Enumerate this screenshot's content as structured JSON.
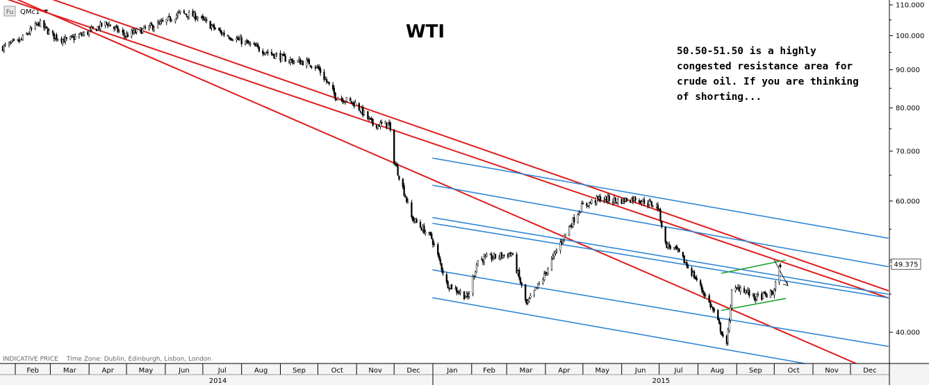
{
  "symbol": {
    "icon": "Fu",
    "name": "QMc1",
    "dropdown_glyph": "▼"
  },
  "footer": {
    "indicative": "INDICATIVE PRICE",
    "timezone": "Time Zone: Dublin, Edinburgh, Lisbon, London"
  },
  "colors": {
    "up": "#ffffff",
    "down": "#000000",
    "red": "#e01b1b",
    "blue": "#2f86d6",
    "green": "#1aa12c"
  },
  "chart_data": {
    "type": "candlestick",
    "title": "WTI",
    "annotation": [
      "50.50-51.50 is a highly",
      "congested resistance area for",
      "crude oil. If you are thinking",
      "of shorting..."
    ],
    "y_scale": "log",
    "ylim": [
      35,
      112
    ],
    "y_ticks": [
      "110.000",
      "100.000",
      "90.000",
      "80.000",
      "70.000",
      "60.000",
      "40.000"
    ],
    "y_tick_values": [
      110,
      100,
      90,
      80,
      70,
      60,
      40
    ],
    "last_price": "49.375",
    "x_range": [
      "2014-01-22",
      "2015-12-31"
    ],
    "months": [
      {
        "label": "Feb",
        "date": "2014-02-01"
      },
      {
        "label": "Mar",
        "date": "2014-03-01"
      },
      {
        "label": "Apr",
        "date": "2014-04-01"
      },
      {
        "label": "May",
        "date": "2014-05-01"
      },
      {
        "label": "Jun",
        "date": "2014-06-01"
      },
      {
        "label": "Jul",
        "date": "2014-07-01"
      },
      {
        "label": "Aug",
        "date": "2014-08-01"
      },
      {
        "label": "Sep",
        "date": "2014-09-01"
      },
      {
        "label": "Oct",
        "date": "2014-10-01"
      },
      {
        "label": "Nov",
        "date": "2014-11-01"
      },
      {
        "label": "Dec",
        "date": "2014-12-01"
      },
      {
        "label": "Jan",
        "date": "2015-01-01"
      },
      {
        "label": "Feb",
        "date": "2015-02-01"
      },
      {
        "label": "Mar",
        "date": "2015-03-01"
      },
      {
        "label": "Apr",
        "date": "2015-04-01"
      },
      {
        "label": "May",
        "date": "2015-05-01"
      },
      {
        "label": "Jun",
        "date": "2015-06-01"
      },
      {
        "label": "Jul",
        "date": "2015-07-01"
      },
      {
        "label": "Aug",
        "date": "2015-08-01"
      },
      {
        "label": "Sep",
        "date": "2015-09-01"
      },
      {
        "label": "Oct",
        "date": "2015-10-01"
      },
      {
        "label": "Nov",
        "date": "2015-11-01"
      },
      {
        "label": "Dec",
        "date": "2015-12-01"
      }
    ],
    "years": [
      {
        "label": "2014",
        "date": "2014-01-01",
        "end": "2015-01-01"
      },
      {
        "label": "2015",
        "date": "2015-01-01",
        "end": "2016-01-01"
      }
    ],
    "price_path": [
      [
        "2014-01-22",
        96.5
      ],
      [
        "2014-02-05",
        98.5
      ],
      [
        "2014-02-20",
        104
      ],
      [
        "2014-03-03",
        100
      ],
      [
        "2014-03-14",
        98.5
      ],
      [
        "2014-03-31",
        101
      ],
      [
        "2014-04-15",
        104
      ],
      [
        "2014-04-30",
        100
      ],
      [
        "2014-05-15",
        102
      ],
      [
        "2014-05-30",
        104
      ],
      [
        "2014-06-13",
        107.3
      ],
      [
        "2014-06-27",
        106
      ],
      [
        "2014-07-15",
        101
      ],
      [
        "2014-07-31",
        98.5
      ],
      [
        "2014-08-15",
        96
      ],
      [
        "2014-08-29",
        94
      ],
      [
        "2014-09-10",
        92.5
      ],
      [
        "2014-09-24",
        92
      ],
      [
        "2014-10-01",
        90.5
      ],
      [
        "2014-10-15",
        83
      ],
      [
        "2014-10-31",
        81
      ],
      [
        "2014-11-14",
        76
      ],
      [
        "2014-11-27",
        76
      ],
      [
        "2014-12-01",
        68
      ],
      [
        "2014-12-15",
        57
      ],
      [
        "2014-12-31",
        53.5
      ],
      [
        "2015-01-12",
        46.5
      ],
      [
        "2015-01-29",
        44.5
      ],
      [
        "2015-02-06",
        50
      ],
      [
        "2015-02-20",
        50.5
      ],
      [
        "2015-03-05",
        51
      ],
      [
        "2015-03-17",
        43.5
      ],
      [
        "2015-03-31",
        47.6
      ],
      [
        "2015-04-15",
        53.5
      ],
      [
        "2015-04-30",
        59
      ],
      [
        "2015-05-15",
        60.5
      ],
      [
        "2015-05-29",
        60
      ],
      [
        "2015-06-12",
        60.5
      ],
      [
        "2015-06-30",
        59
      ],
      [
        "2015-07-06",
        52.5
      ],
      [
        "2015-07-15",
        51.5
      ],
      [
        "2015-07-31",
        47
      ],
      [
        "2015-08-14",
        42.5
      ],
      [
        "2015-08-24",
        38.3
      ],
      [
        "2015-08-28",
        45.2
      ],
      [
        "2015-09-04",
        46
      ],
      [
        "2015-09-15",
        44.5
      ],
      [
        "2015-09-30",
        45.1
      ],
      [
        "2015-10-06",
        49.4
      ]
    ],
    "trendlines": [
      {
        "color": "red",
        "points": [
          [
            "2014-01-25",
            112
          ],
          [
            "2015-12-31",
            44.5
          ]
        ]
      },
      {
        "color": "red",
        "points": [
          [
            "2014-01-22",
            118
          ],
          [
            "2015-12-31",
            45.5
          ]
        ]
      },
      {
        "color": "red",
        "points": [
          [
            "2014-01-22",
            114
          ],
          [
            "2015-12-31",
            34.8
          ]
        ]
      },
      {
        "color": "blue",
        "points": [
          [
            "2015-01-01",
            68.5
          ],
          [
            "2015-12-31",
            53.5
          ]
        ]
      },
      {
        "color": "blue",
        "points": [
          [
            "2015-01-01",
            63
          ],
          [
            "2015-12-31",
            49
          ]
        ]
      },
      {
        "color": "blue",
        "points": [
          [
            "2015-01-01",
            57
          ],
          [
            "2015-12-31",
            45
          ]
        ]
      },
      {
        "color": "blue",
        "points": [
          [
            "2015-01-01",
            56
          ],
          [
            "2015-12-31",
            44.5
          ]
        ]
      },
      {
        "color": "blue",
        "points": [
          [
            "2015-01-01",
            48.5
          ],
          [
            "2015-12-31",
            38.3
          ]
        ]
      },
      {
        "color": "blue",
        "points": [
          [
            "2015-01-01",
            44.5
          ],
          [
            "2015-11-20",
            35.7
          ]
        ]
      },
      {
        "color": "green",
        "points": [
          [
            "2015-08-20",
            48
          ],
          [
            "2015-10-10",
            50
          ]
        ]
      },
      {
        "color": "green",
        "points": [
          [
            "2015-08-20",
            42.8
          ],
          [
            "2015-10-10",
            44.4
          ]
        ]
      }
    ],
    "arrow": {
      "from": [
        "2015-10-01",
        50
      ],
      "to": [
        "2015-10-12",
        46.2
      ]
    }
  }
}
